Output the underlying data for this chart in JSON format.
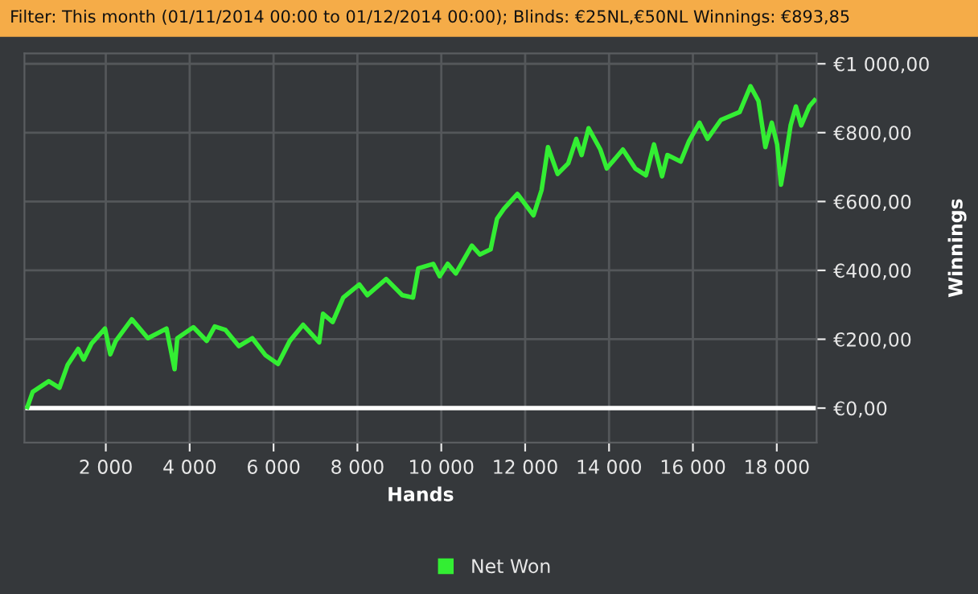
{
  "chart_data": {
    "type": "line",
    "title": "Filter: This month (01/11/2014 00:00 to 01/12/2014 00:00); Blinds: €25NL,€50NL Winnings: €893,85",
    "xlabel": "Hands",
    "ylabel": "Winnings",
    "series": [
      {
        "name": "Net Won",
        "color": "#33ee33",
        "x": [
          130,
          257,
          640,
          895,
          1088,
          1341,
          1471,
          1663,
          1981,
          2107,
          2237,
          2620,
          3004,
          3448,
          3640,
          3704,
          4088,
          4406,
          4598,
          4854,
          5172,
          5494,
          5812,
          6107,
          6387,
          6705,
          7088,
          7180,
          7410,
          7663,
          8046,
          8238,
          8686,
          9069,
          9326,
          9452,
          9808,
          9962,
          10153,
          10345,
          10728,
          10920,
          11176,
          11329,
          11494,
          11816,
          12199,
          12391,
          12544,
          12774,
          13027,
          13218,
          13347,
          13512,
          13793,
          13946,
          14330,
          14625,
          14880,
          15072,
          15264,
          15391,
          15709,
          15901,
          16157,
          16349,
          16667,
          17115,
          17372,
          17563,
          17728,
          17881,
          18008,
          18100,
          18199,
          18329,
          18456,
          18582,
          18774,
          18900
        ],
        "values": [
          3,
          47,
          78,
          59,
          125,
          172,
          141,
          188,
          231,
          156,
          195,
          258,
          203,
          231,
          113,
          203,
          235,
          195,
          237,
          227,
          180,
          203,
          153,
          128,
          195,
          242,
          191,
          274,
          250,
          321,
          359,
          328,
          375,
          328,
          321,
          406,
          419,
          383,
          419,
          391,
          472,
          446,
          461,
          550,
          579,
          622,
          560,
          633,
          758,
          680,
          711,
          782,
          735,
          813,
          751,
          696,
          751,
          696,
          676,
          766,
          673,
          735,
          716,
          774,
          829,
          782,
          837,
          860,
          935,
          892,
          758,
          829,
          766,
          649,
          719,
          821,
          876,
          821,
          876,
          894
        ]
      }
    ],
    "xlim": [
      60,
      18950
    ],
    "ylim": [
      -100,
      1030
    ],
    "xticks": [
      {
        "value": 2000,
        "label": "2 000"
      },
      {
        "value": 4000,
        "label": "4 000"
      },
      {
        "value": 6000,
        "label": "6 000"
      },
      {
        "value": 8000,
        "label": "8 000"
      },
      {
        "value": 10000,
        "label": "10 000"
      },
      {
        "value": 12000,
        "label": "12 000"
      },
      {
        "value": 14000,
        "label": "14 000"
      },
      {
        "value": 16000,
        "label": "16 000"
      },
      {
        "value": 18000,
        "label": "18 000"
      }
    ],
    "yticks": [
      {
        "value": 0,
        "label": "€0,00"
      },
      {
        "value": 200,
        "label": "€200,00"
      },
      {
        "value": 400,
        "label": "€400,00"
      },
      {
        "value": 600,
        "label": "€600,00"
      },
      {
        "value": 800,
        "label": "€800,00"
      },
      {
        "value": 1000,
        "label": "€1 000,00"
      }
    ],
    "ref_lines": [
      {
        "axis": "y",
        "value": 0,
        "color": "#ffffff"
      }
    ],
    "grid": true,
    "legend": "bottom",
    "marker": "none",
    "line_style": "solid"
  }
}
